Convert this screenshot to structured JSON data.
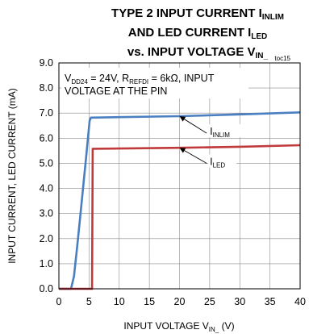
{
  "chart_data": {
    "type": "line",
    "title_lines": [
      {
        "main": "TYPE 2 INPUT CURRENT I",
        "sub": "INLIM"
      },
      {
        "main": "AND LED CURRENT I",
        "sub": "LED"
      },
      {
        "main": "vs. INPUT VOLTAGE V",
        "sub": "IN_"
      }
    ],
    "figure_id": "toc15",
    "xlabel": {
      "main": "INPUT VOLTAGE V",
      "sub": "IN_",
      "suffix": " (V)"
    },
    "ylabel": "INPUT CURRENT, LED CURRENT (mA)",
    "xlim": [
      0,
      40
    ],
    "ylim": [
      0,
      9
    ],
    "xticks": [
      0,
      5,
      10,
      15,
      20,
      25,
      30,
      35,
      40
    ],
    "yticks": [
      0,
      1,
      2,
      3,
      4,
      5,
      6,
      7,
      8,
      9
    ],
    "xtick_labels": [
      "0",
      "5",
      "10",
      "15",
      "20",
      "25",
      "30",
      "35",
      "40"
    ],
    "ytick_labels": [
      "0.0",
      "1.0",
      "2.0",
      "3.0",
      "4.0",
      "5.0",
      "6.0",
      "7.0",
      "8.0",
      "9.0"
    ],
    "grid": true,
    "conditions": {
      "line1_parts": [
        {
          "text": "V",
          "sub": false
        },
        {
          "text": "DD24",
          "sub": true
        },
        {
          "text": " = 24V, R",
          "sub": false
        },
        {
          "text": "REFDI",
          "sub": true
        },
        {
          "text": " = 6kΩ, INPUT",
          "sub": false
        }
      ],
      "line2": "VOLTAGE AT THE PIN"
    },
    "series": [
      {
        "label_main": "I",
        "label_sub": "INLIM",
        "color": "#4a7fc1",
        "x": [
          0,
          2.0,
          2.5,
          3.0,
          3.5,
          4.0,
          4.5,
          4.9,
          5.1,
          5.3,
          10,
          20,
          30,
          40
        ],
        "y": [
          0,
          0,
          0.5,
          1.6,
          2.8,
          4.0,
          5.2,
          6.2,
          6.7,
          6.82,
          6.84,
          6.88,
          6.95,
          7.03
        ]
      },
      {
        "label_main": "I",
        "label_sub": "LED",
        "color": "#c0393b",
        "x": [
          0,
          5.5,
          5.6,
          10,
          20,
          30,
          40
        ],
        "y": [
          0,
          0,
          5.58,
          5.59,
          5.62,
          5.66,
          5.72
        ]
      }
    ],
    "annotations": [
      {
        "series_index": 0,
        "point": [
          20,
          6.88
        ],
        "label_pos": [
          24.5,
          6.2
        ]
      },
      {
        "series_index": 1,
        "point": [
          20,
          5.62
        ],
        "label_pos": [
          24.5,
          5.0
        ]
      }
    ]
  }
}
